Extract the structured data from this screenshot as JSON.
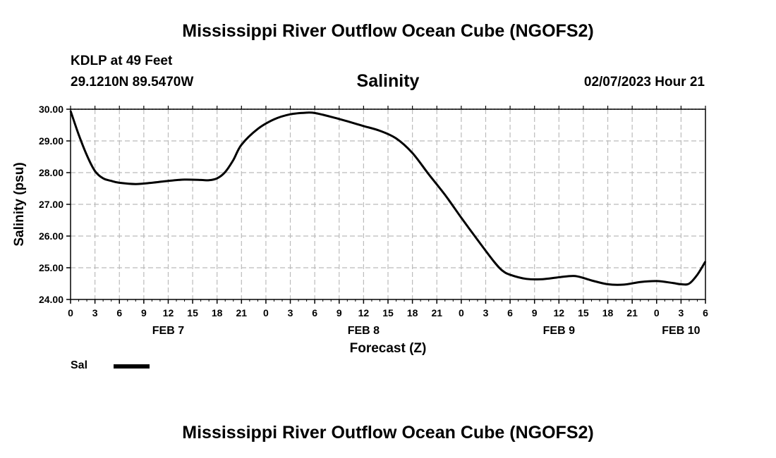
{
  "header": {
    "title": "Mississippi River Outflow Ocean Cube (NGOFS2)",
    "station": "KDLP at 49 Feet",
    "coords": "29.1210N  89.5470W",
    "variable": "Salinity",
    "datetime": "02/07/2023 Hour 21"
  },
  "footer": {
    "title": "Mississippi River Outflow Ocean Cube (NGOFS2)"
  },
  "legend": {
    "label": "Sal"
  },
  "chart_data": {
    "type": "line",
    "title": "Salinity",
    "xlabel": "Forecast (Z)",
    "ylabel": "Salinity (psu)",
    "ylim": [
      24,
      30
    ],
    "yticks": [
      "30.00",
      "29.00",
      "28.00",
      "27.00",
      "26.00",
      "25.00",
      "24.00"
    ],
    "xlim": [
      0,
      78
    ],
    "x_unit": "hours from 02/07 00Z",
    "xtick_labels": [
      "0",
      "3",
      "6",
      "9",
      "12",
      "15",
      "18",
      "21",
      "0",
      "3",
      "6",
      "9",
      "12",
      "15",
      "18",
      "21",
      "0",
      "3",
      "6",
      "9",
      "12",
      "15",
      "18",
      "21",
      "0",
      "3",
      "6"
    ],
    "day_labels": [
      {
        "hour": 12,
        "label": "FEB 7"
      },
      {
        "hour": 36,
        "label": "FEB 8"
      },
      {
        "hour": 60,
        "label": "FEB 9"
      },
      {
        "hour": 75,
        "label": "FEB 10"
      }
    ],
    "grid": true,
    "series": [
      {
        "name": "Sal",
        "color": "#000000",
        "x": [
          0,
          1,
          2,
          3,
          4,
          5,
          6,
          8,
          10,
          12,
          14,
          16,
          17,
          18,
          19,
          20,
          21,
          23,
          25,
          27,
          29,
          30,
          32,
          34,
          36,
          38,
          40,
          42,
          44,
          46,
          48,
          50,
          52,
          53,
          54,
          56,
          58,
          60,
          62,
          64,
          66,
          68,
          70,
          72,
          74,
          75,
          76,
          77,
          78
        ],
        "values": [
          29.95,
          29.2,
          28.55,
          28.05,
          27.82,
          27.74,
          27.68,
          27.64,
          27.68,
          27.74,
          27.78,
          27.77,
          27.76,
          27.82,
          28.02,
          28.4,
          28.88,
          29.38,
          29.68,
          29.84,
          29.89,
          29.88,
          29.76,
          29.62,
          29.47,
          29.32,
          29.08,
          28.62,
          27.95,
          27.3,
          26.58,
          25.88,
          25.2,
          24.92,
          24.78,
          24.65,
          24.64,
          24.7,
          24.74,
          24.6,
          24.48,
          24.47,
          24.55,
          24.58,
          24.52,
          24.48,
          24.5,
          24.78,
          25.2
        ]
      }
    ]
  }
}
